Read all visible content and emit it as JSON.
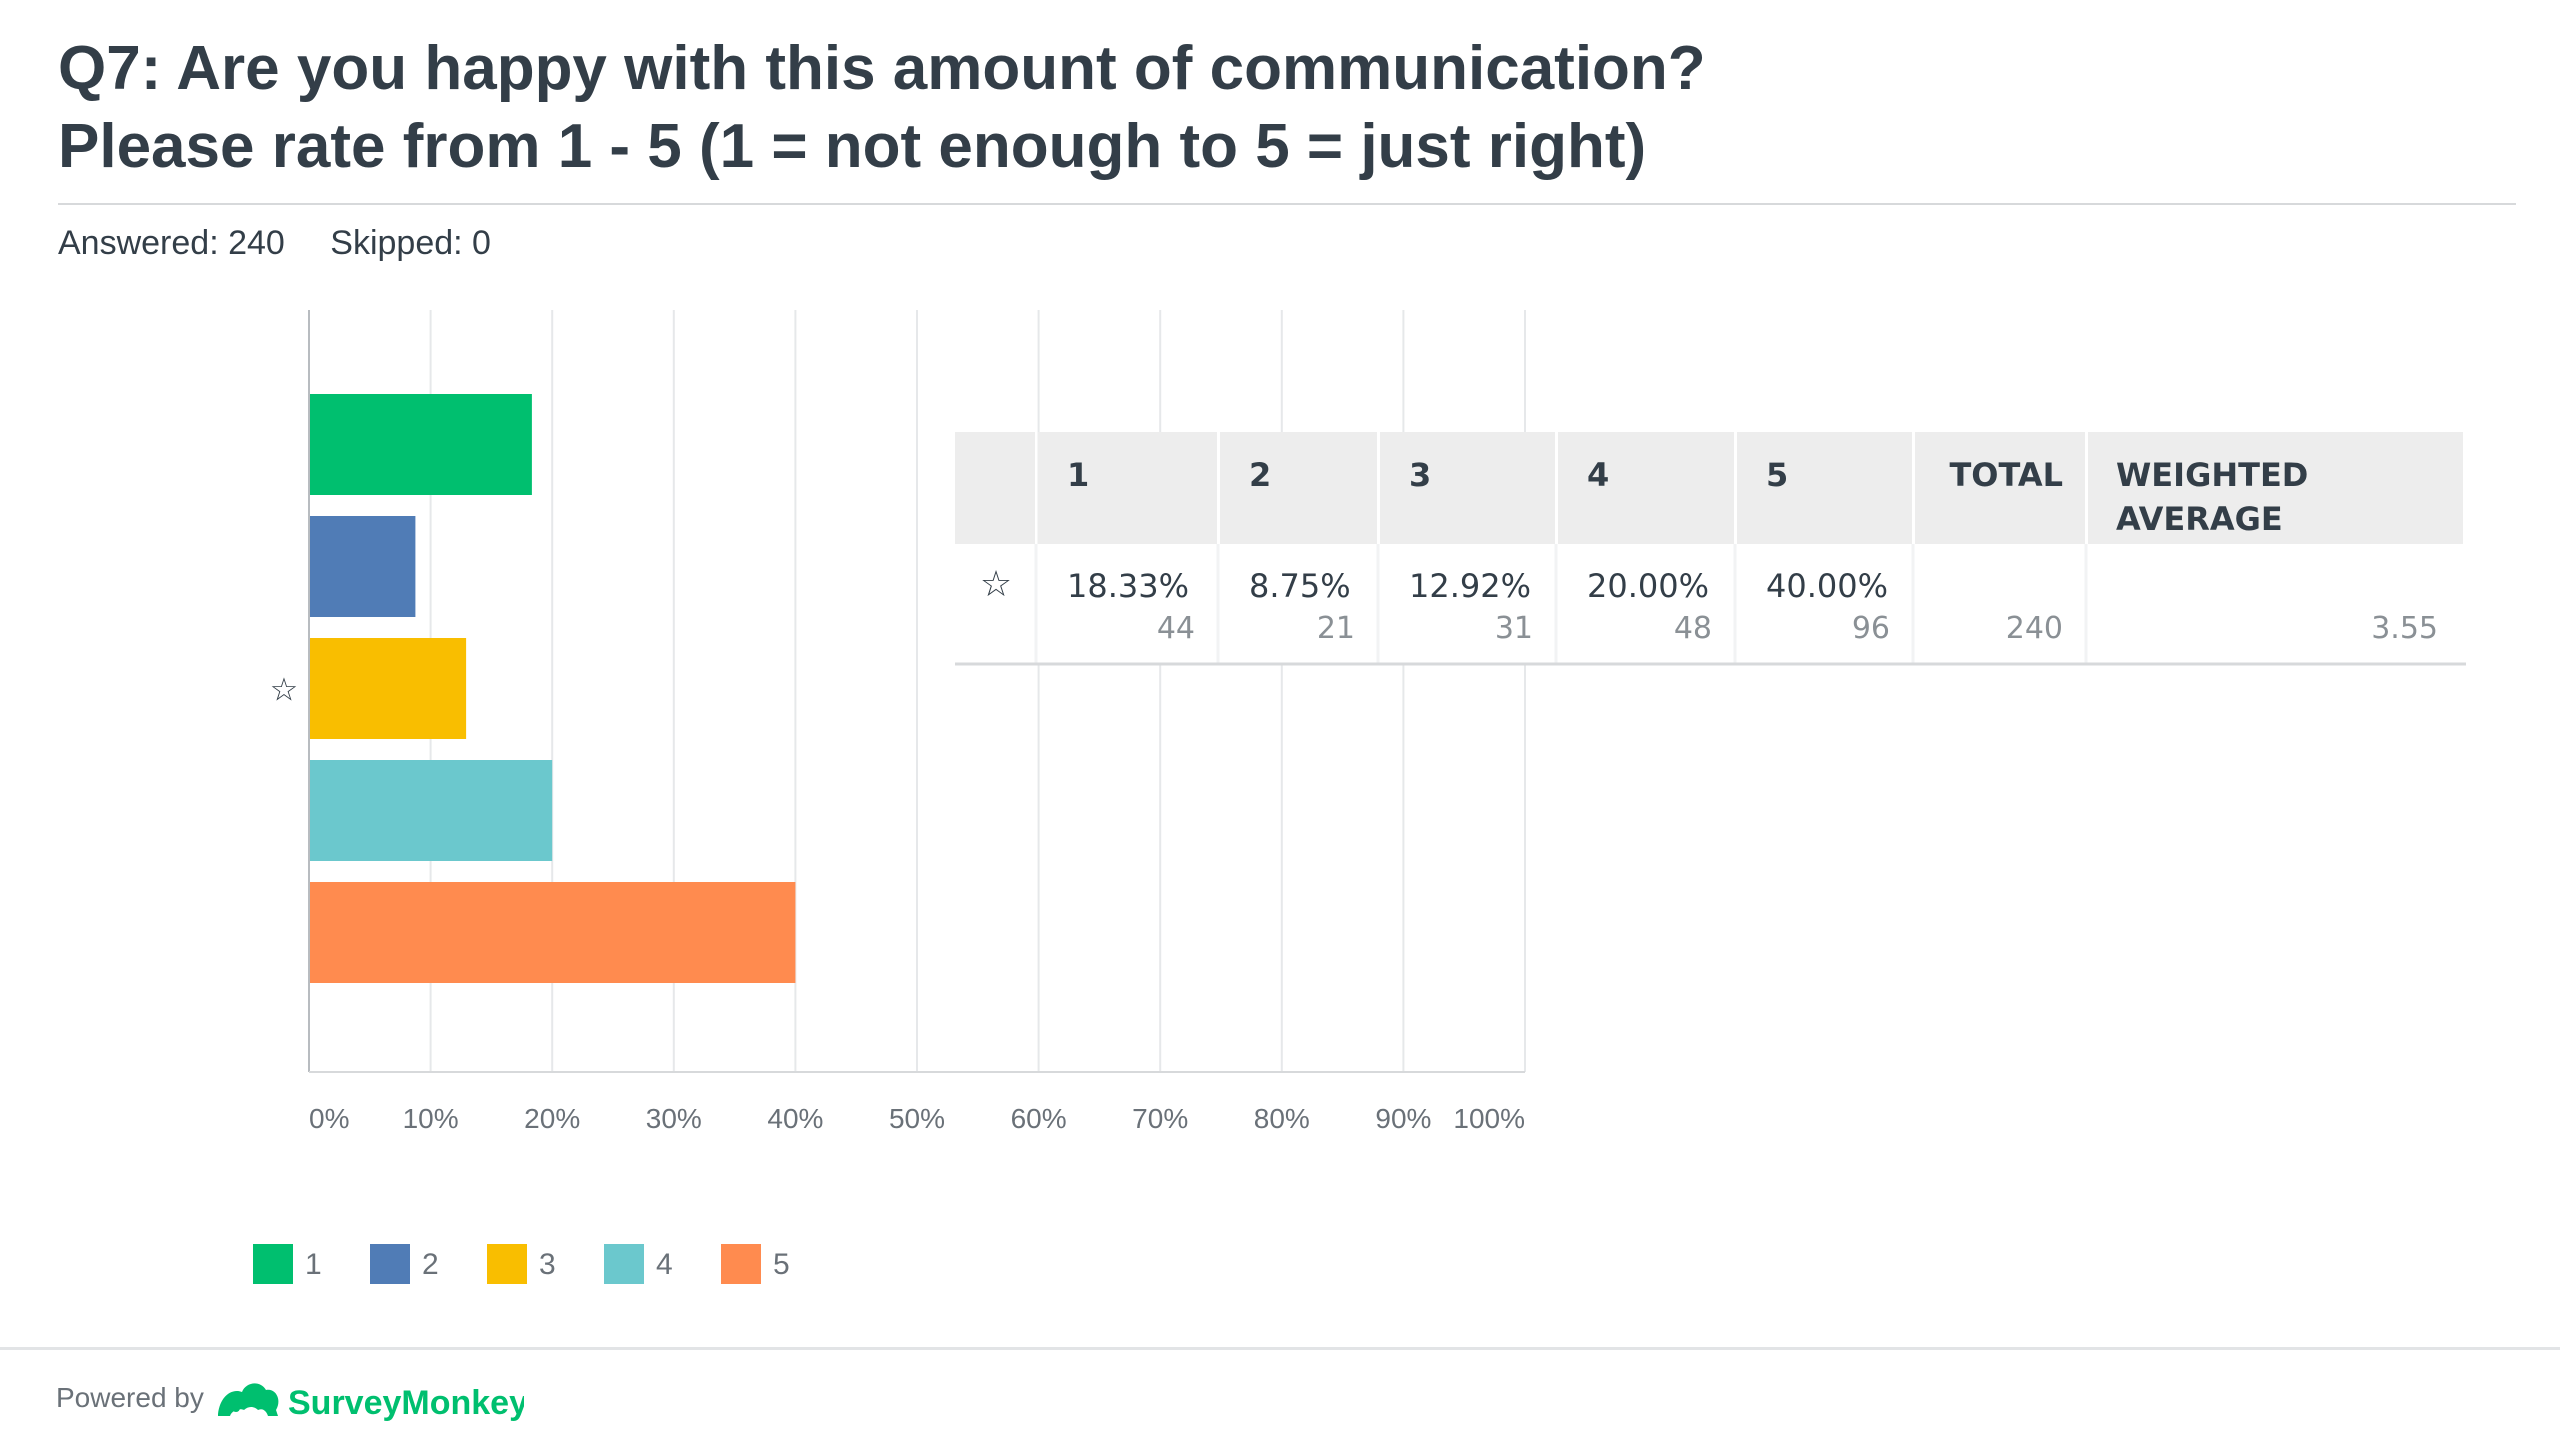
{
  "header": {
    "title_line1": "Q7: Are you happy with this amount of communication?",
    "title_line2": "Please rate from 1 - 5 (1 = not enough to 5 = just right)",
    "answered": "Answered: 240",
    "skipped": "Skipped: 0"
  },
  "chart_data": {
    "type": "bar",
    "orientation": "horizontal",
    "categories": [
      "1",
      "2",
      "3",
      "4",
      "5"
    ],
    "values": [
      18.33,
      8.75,
      12.92,
      20.0,
      40.0
    ],
    "unit": "%",
    "xlim": [
      0,
      100
    ],
    "xticks": [
      "0%",
      "10%",
      "20%",
      "30%",
      "40%",
      "50%",
      "60%",
      "70%",
      "80%",
      "90%",
      "100%"
    ],
    "row_label": "☆",
    "legend_position": "bottom-left",
    "grid": true,
    "colors": [
      "#00bf6f",
      "#507cb6",
      "#f9be00",
      "#6bc8cd",
      "#ff8b4f"
    ]
  },
  "table": {
    "columns": [
      "",
      "1",
      "2",
      "3",
      "4",
      "5",
      "TOTAL",
      "WEIGHTED AVERAGE"
    ],
    "row_icon": "☆",
    "percents": [
      "18.33%",
      "8.75%",
      "12.92%",
      "20.00%",
      "40.00%"
    ],
    "counts": [
      "44",
      "21",
      "31",
      "48",
      "96"
    ],
    "total": "240",
    "weighted_average": "3.55"
  },
  "footer": {
    "powered_by": "Powered by",
    "brand": "SurveyMonkey",
    "brand_mark": "®",
    "brand_color": "#00bf6f"
  },
  "colors": {
    "text": "#333e48",
    "muted": "#6a7178",
    "grid": "#e6e8ea",
    "table_header_bg": "#ededed"
  }
}
